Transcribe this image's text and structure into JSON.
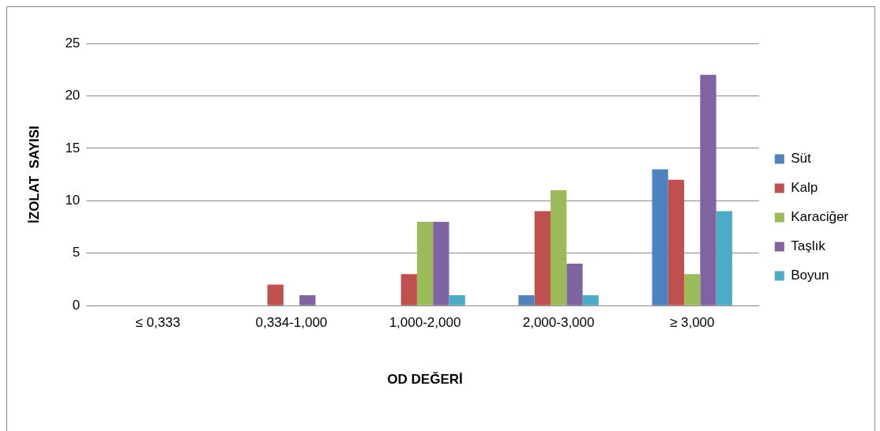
{
  "chart_data": {
    "type": "bar",
    "xlabel": "OD DEĞERİ",
    "ylabel": "İZOLAT  SAYISI",
    "categories": [
      "≤ 0,333",
      "0,334-1,000",
      "1,000-2,000",
      "2,000-3,000",
      "≥ 3,000"
    ],
    "series": [
      {
        "name": "Süt",
        "color": "#4f81bd",
        "values": [
          0,
          0,
          0,
          1,
          13
        ]
      },
      {
        "name": "Kalp",
        "color": "#c0504d",
        "values": [
          0,
          2,
          3,
          9,
          12
        ]
      },
      {
        "name": "Karaciğer",
        "color": "#9bbb59",
        "values": [
          0,
          0,
          8,
          11,
          3
        ]
      },
      {
        "name": "Taşlık",
        "color": "#8064a2",
        "values": [
          0,
          1,
          8,
          4,
          22
        ]
      },
      {
        "name": "Boyun",
        "color": "#4bacc6",
        "values": [
          0,
          0,
          1,
          1,
          9
        ]
      }
    ],
    "ylim": [
      0,
      25
    ],
    "yticks": [
      0,
      5,
      10,
      15,
      20,
      25
    ],
    "grid": "y",
    "legend": "right"
  }
}
